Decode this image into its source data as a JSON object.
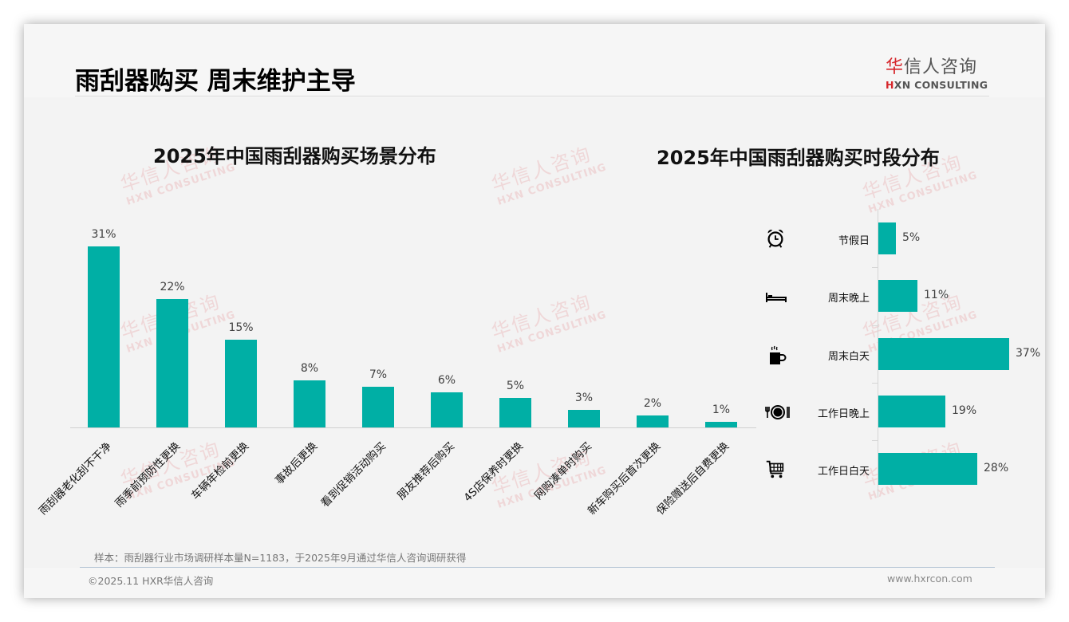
{
  "page": {
    "title": "雨刮器购买 周末维护主导",
    "logo": {
      "cn_red": "华",
      "cn_rest": "信人咨询",
      "en_mark": "H",
      "en_rest": "XN CONSULTING"
    },
    "watermark": {
      "cn": "华信人咨询",
      "en": "HXN CONSULTING"
    }
  },
  "footer": {
    "note": "样本：雨刮器行业市场调研样本量N=1183，于2025年9月通过华信人咨询调研获得",
    "copyright": "©2025.11 HXR华信人咨询",
    "website": "www.hxrcon.com"
  },
  "colors": {
    "bar": "#00afa5",
    "logo_red": "#d6262b",
    "text": "#404040"
  },
  "chart_data": [
    {
      "type": "bar",
      "title": "2025年中国雨刮器购买场景分布",
      "xlabel": "",
      "ylabel": "",
      "categories": [
        "雨刮器老化刮不干净",
        "雨季前预防性更换",
        "车辆年检前更换",
        "事故后更换",
        "看到促销活动购买",
        "朋友推荐后购买",
        "4S店保养时更换",
        "网购凑单时购买",
        "新车购买后首次更换",
        "保险赠送后自费更换"
      ],
      "values": [
        31,
        22,
        15,
        8,
        7,
        6,
        5,
        3,
        2,
        1
      ],
      "value_labels": [
        "31%",
        "22%",
        "15%",
        "8%",
        "7%",
        "6%",
        "5%",
        "3%",
        "2%",
        "1%"
      ],
      "unit": "%",
      "ylim": [
        0,
        35
      ],
      "grid": false,
      "legend": "none"
    },
    {
      "type": "bar",
      "orientation": "horizontal",
      "title": "2025年中国雨刮器购买时段分布",
      "xlabel": "",
      "ylabel": "",
      "categories": [
        "节假日",
        "周末晚上",
        "周末白天",
        "工作日晚上",
        "工作日白天"
      ],
      "icons": [
        "alarm-clock-icon",
        "bed-icon",
        "coffee-mug-icon",
        "dinner-plate-icon",
        "shopping-cart-icon"
      ],
      "values": [
        5,
        11,
        37,
        19,
        28
      ],
      "value_labels": [
        "5%",
        "11%",
        "37%",
        "19%",
        "28%"
      ],
      "unit": "%",
      "xlim": [
        0,
        40
      ],
      "grid": false,
      "legend": "none"
    }
  ]
}
